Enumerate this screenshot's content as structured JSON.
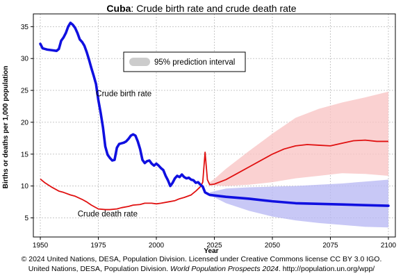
{
  "title": {
    "country": "Cuba",
    "rest": ": Crude birth rate and crude death rate"
  },
  "footer": {
    "line1": "© 2024 United Nations, DESA, Population Division. Licensed under Creative Commons license CC BY 3.0 IGO.",
    "line2_pre": "United Nations, DESA, Population Division. ",
    "line2_italic": "World Population Prospects 2024",
    "line2_post": ". http://population.un.org/wpp/"
  },
  "chart_data": {
    "type": "line",
    "title": "Cuba: Crude birth rate and crude death rate",
    "xlabel": "Year",
    "ylabel": "Births or deaths per 1,000 population",
    "xlim": [
      1947,
      2103
    ],
    "ylim": [
      2,
      37
    ],
    "x_ticks": [
      1950,
      1975,
      2000,
      2025,
      2050,
      2075,
      2100
    ],
    "y_ticks": [
      5,
      10,
      15,
      20,
      25,
      30,
      35
    ],
    "grid": true,
    "legend": {
      "label": "95% prediction interval",
      "placement": "top-center"
    },
    "annotations": [
      {
        "text": "Crude birth rate",
        "x": 1986,
        "y": 24.1
      },
      {
        "text": "Crude death rate",
        "x": 1979,
        "y": 5.2
      }
    ],
    "colors": {
      "birth": "#1010e0",
      "death": "#e01010",
      "birth_band": "#b8b8f4",
      "death_band": "#f8c4c4",
      "legend_swatch": "#cccccc",
      "grid": "#c8c8c8"
    },
    "series": [
      {
        "name": "Crude birth rate",
        "x": [
          1950,
          1951,
          1952,
          1953,
          1955,
          1957,
          1958,
          1959,
          1960,
          1961,
          1962,
          1963,
          1964,
          1965,
          1966,
          1967,
          1968,
          1969,
          1970,
          1971,
          1972,
          1973,
          1974,
          1975,
          1976,
          1977,
          1978,
          1979,
          1980,
          1981,
          1982,
          1983,
          1984,
          1985,
          1986,
          1987,
          1988,
          1989,
          1990,
          1991,
          1992,
          1993,
          1994,
          1995,
          1996,
          1997,
          1998,
          1999,
          2000,
          2001,
          2002,
          2003,
          2004,
          2005,
          2006,
          2007,
          2008,
          2009,
          2010,
          2011,
          2012,
          2013,
          2014,
          2015,
          2016,
          2017,
          2018,
          2019,
          2020,
          2021,
          2022,
          2023,
          2030,
          2040,
          2050,
          2060,
          2070,
          2080,
          2090,
          2100
        ],
        "y": [
          32.3,
          31.6,
          31.5,
          31.4,
          31.3,
          31.2,
          31.5,
          32.8,
          33.3,
          34.0,
          35.0,
          35.6,
          35.3,
          34.8,
          34.0,
          33.0,
          32.6,
          32.0,
          31.0,
          29.8,
          28.5,
          27.3,
          26.0,
          23.5,
          21.5,
          19.2,
          16.2,
          14.9,
          14.4,
          14.0,
          14.1,
          16.0,
          16.6,
          16.7,
          16.8,
          17.0,
          17.4,
          17.9,
          18.1,
          17.9,
          17.0,
          15.8,
          14.1,
          13.6,
          13.9,
          14.0,
          13.5,
          13.2,
          13.5,
          13.2,
          12.8,
          12.5,
          11.6,
          10.9,
          10.0,
          10.5,
          11.2,
          11.6,
          11.4,
          11.8,
          11.4,
          11.2,
          11.3,
          11.0,
          10.9,
          10.5,
          10.6,
          10.2,
          9.9,
          9.0,
          8.8,
          8.6,
          8.3,
          8.0,
          7.6,
          7.3,
          7.2,
          7.1,
          7.0,
          6.9
        ]
      },
      {
        "name": "Crude death rate",
        "x": [
          1950,
          1952,
          1955,
          1958,
          1960,
          1963,
          1965,
          1968,
          1970,
          1972,
          1975,
          1978,
          1980,
          1983,
          1985,
          1988,
          1990,
          1993,
          1995,
          1998,
          2000,
          2002,
          2005,
          2008,
          2010,
          2012,
          2015,
          2017,
          2019,
          2020,
          2021,
          2022,
          2023,
          2025,
          2030,
          2035,
          2040,
          2045,
          2050,
          2055,
          2060,
          2065,
          2070,
          2075,
          2080,
          2085,
          2090,
          2095,
          2100
        ],
        "y": [
          11.1,
          10.5,
          9.8,
          9.2,
          9.0,
          8.6,
          8.4,
          7.9,
          7.5,
          7.0,
          6.4,
          6.3,
          6.3,
          6.4,
          6.6,
          6.8,
          7.0,
          7.1,
          7.3,
          7.3,
          7.2,
          7.3,
          7.5,
          7.7,
          8.0,
          8.2,
          8.6,
          9.2,
          9.9,
          10.6,
          15.3,
          11.0,
          10.2,
          10.3,
          11.0,
          12.0,
          13.0,
          14.0,
          15.0,
          15.8,
          16.3,
          16.5,
          16.4,
          16.3,
          16.7,
          17.1,
          17.2,
          17.0,
          17.0
        ]
      }
    ],
    "intervals": [
      {
        "name": "Crude birth rate 95% prediction interval",
        "x": [
          2023,
          2030,
          2040,
          2050,
          2060,
          2070,
          2080,
          2090,
          2100
        ],
        "lower": [
          8.6,
          7.3,
          6.1,
          5.2,
          4.6,
          4.2,
          3.9,
          3.6,
          3.5
        ],
        "upper": [
          9.0,
          9.6,
          9.8,
          9.9,
          10.0,
          10.2,
          10.4,
          10.7,
          11.0
        ]
      },
      {
        "name": "Crude death rate 95% prediction interval",
        "x": [
          2023,
          2025,
          2030,
          2040,
          2050,
          2060,
          2070,
          2080,
          2090,
          2100
        ],
        "lower": [
          10.1,
          10.1,
          10.0,
          10.2,
          10.6,
          11.2,
          11.6,
          12.0,
          11.9,
          11.6
        ],
        "upper": [
          10.6,
          11.1,
          12.7,
          15.5,
          18.2,
          20.7,
          22.1,
          23.1,
          23.9,
          24.8
        ]
      }
    ]
  }
}
